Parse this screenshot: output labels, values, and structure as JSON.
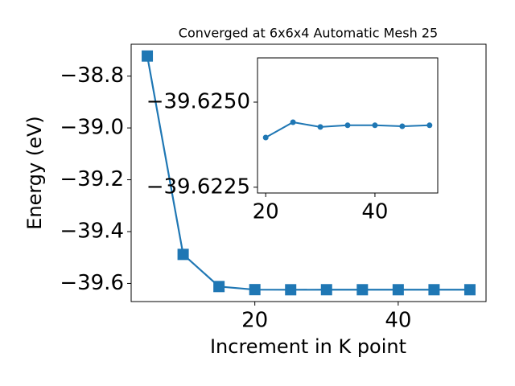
{
  "chart_data": [
    {
      "type": "line",
      "title": "Converged at 6x6x4 Automatic Mesh 25",
      "xlabel": "Increment in K point",
      "ylabel": "Energy (eV)",
      "x": [
        5,
        10,
        15,
        20,
        25,
        30,
        35,
        40,
        45,
        50
      ],
      "series": [
        {
          "color": "#1f77b4",
          "marker": "square",
          "values": [
            -38.7225,
            -39.488,
            -39.612,
            -39.62396,
            -39.62441,
            -39.62427,
            -39.62432,
            -39.62432,
            -39.62429,
            -39.62432
          ]
        }
      ],
      "xlim": [
        2.75,
        52.25
      ],
      "xticks": [
        20,
        40
      ],
      "ylim": [
        -39.67,
        -38.677
      ],
      "yticks": [
        {
          "value": -39.6,
          "label": "−39.6"
        },
        {
          "value": -39.4,
          "label": "−39.4"
        },
        {
          "value": -39.2,
          "label": "−39.2"
        },
        {
          "value": -39.0,
          "label": "−39.0"
        },
        {
          "value": -38.8,
          "label": "−38.8"
        }
      ]
    },
    {
      "type": "line",
      "x": [
        20,
        25,
        30,
        35,
        40,
        45,
        50
      ],
      "series": [
        {
          "color": "#1f77b4",
          "marker": "circle",
          "values": [
            -39.62396,
            -39.62441,
            -39.62427,
            -39.62432,
            -39.62432,
            -39.62429,
            -39.62432
          ]
        }
      ],
      "xlim": [
        18.5,
        51.5
      ],
      "xticks": [
        20,
        40
      ],
      "ylim": [
        -39.62233,
        -39.6263
      ],
      "yticks": [
        {
          "value": -39.6225,
          "label": "−39.6225"
        },
        {
          "value": -39.625,
          "label": "−39.6250"
        }
      ]
    }
  ]
}
